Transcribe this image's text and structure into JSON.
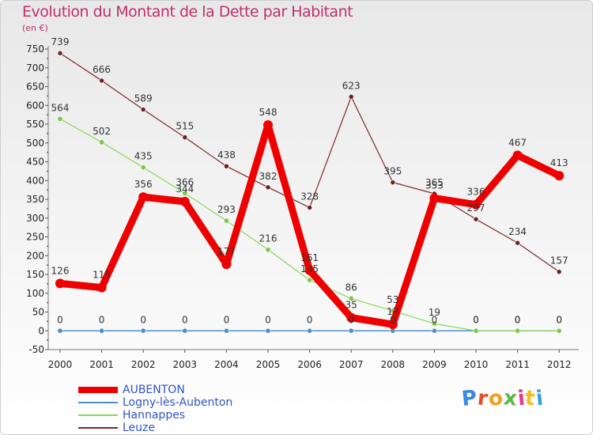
{
  "header": {
    "title": "Evolution du Montant de la Dette par Habitant",
    "unit": "(en €)"
  },
  "logo": {
    "text": "Proxiti"
  },
  "chart_data": {
    "type": "line",
    "title": "Evolution du Montant de la Dette par Habitant",
    "ylabel": "(en €)",
    "xlabel": "",
    "ylim": [
      -50,
      750
    ],
    "y_ticks": [
      -50,
      0,
      50,
      100,
      150,
      200,
      250,
      300,
      350,
      400,
      450,
      500,
      550,
      600,
      650,
      700,
      750
    ],
    "grid": false,
    "legend_position": "bottom-left",
    "x": [
      "2000",
      "2001",
      "2002",
      "2003",
      "2004",
      "2005",
      "2006",
      "2007",
      "2008",
      "2009",
      "2010",
      "2011",
      "2012"
    ],
    "series": [
      {
        "name": "AUBENTON",
        "color": "#ee0000",
        "values": [
          126,
          115,
          356,
          344,
          177,
          548,
          161,
          35,
          17,
          353,
          336,
          467,
          413
        ]
      },
      {
        "name": "Logny-lès-Aubenton",
        "color": "#4f8fc8",
        "values": [
          0,
          0,
          0,
          0,
          0,
          0,
          0,
          0,
          0,
          0,
          0,
          0,
          0
        ]
      },
      {
        "name": "Hannappes",
        "color": "#8cd65a",
        "values": [
          564,
          502,
          435,
          366,
          293,
          216,
          135,
          86,
          53,
          19,
          0,
          0,
          0
        ]
      },
      {
        "name": "Leuze",
        "color": "#7a2a2a",
        "values": [
          739,
          666,
          589,
          515,
          438,
          382,
          328,
          623,
          395,
          365,
          297,
          234,
          157
        ]
      }
    ]
  }
}
